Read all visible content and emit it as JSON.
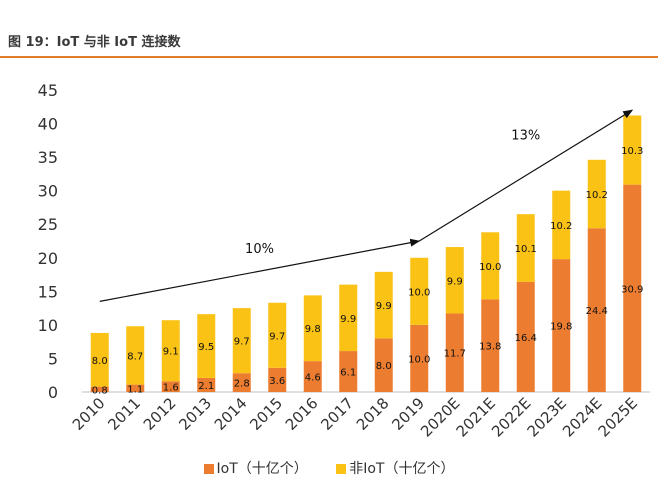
{
  "figure_title": "图 19：IoT 与非 IoT 连接数",
  "chart_data": {
    "type": "bar",
    "stacked": true,
    "categories": [
      "2010",
      "2011",
      "2012",
      "2013",
      "2014",
      "2015",
      "2016",
      "2017",
      "2018",
      "2019",
      "2020E",
      "2021E",
      "2022E",
      "2023E",
      "2024E",
      "2025E"
    ],
    "series": [
      {
        "name": "IoT（十亿个）",
        "color": "#ec7d30",
        "values": [
          0.8,
          1.1,
          1.6,
          2.1,
          2.8,
          3.6,
          4.6,
          6.1,
          8.0,
          10.0,
          11.7,
          13.8,
          16.4,
          19.8,
          24.4,
          30.9
        ]
      },
      {
        "name": "非IoT（十亿个）",
        "color": "#fbc216",
        "values": [
          8.0,
          8.7,
          9.1,
          9.5,
          9.7,
          9.7,
          9.8,
          9.9,
          9.9,
          10.0,
          9.9,
          10.0,
          10.1,
          10.2,
          10.2,
          10.3
        ]
      }
    ],
    "ylim": [
      0,
      45
    ],
    "yticks": [
      0,
      5,
      10,
      15,
      20,
      25,
      30,
      35,
      40,
      45
    ],
    "grid": false,
    "legend_position": "bottom",
    "annotations": [
      {
        "text": "10%",
        "from": {
          "x": "2010",
          "y": 13.5
        },
        "to": {
          "x": "2019",
          "y": 22.5
        }
      },
      {
        "text": "13%",
        "from": {
          "x": "2019",
          "y": 22.5
        },
        "to": {
          "x": "2025E",
          "y": 42
        }
      }
    ]
  }
}
